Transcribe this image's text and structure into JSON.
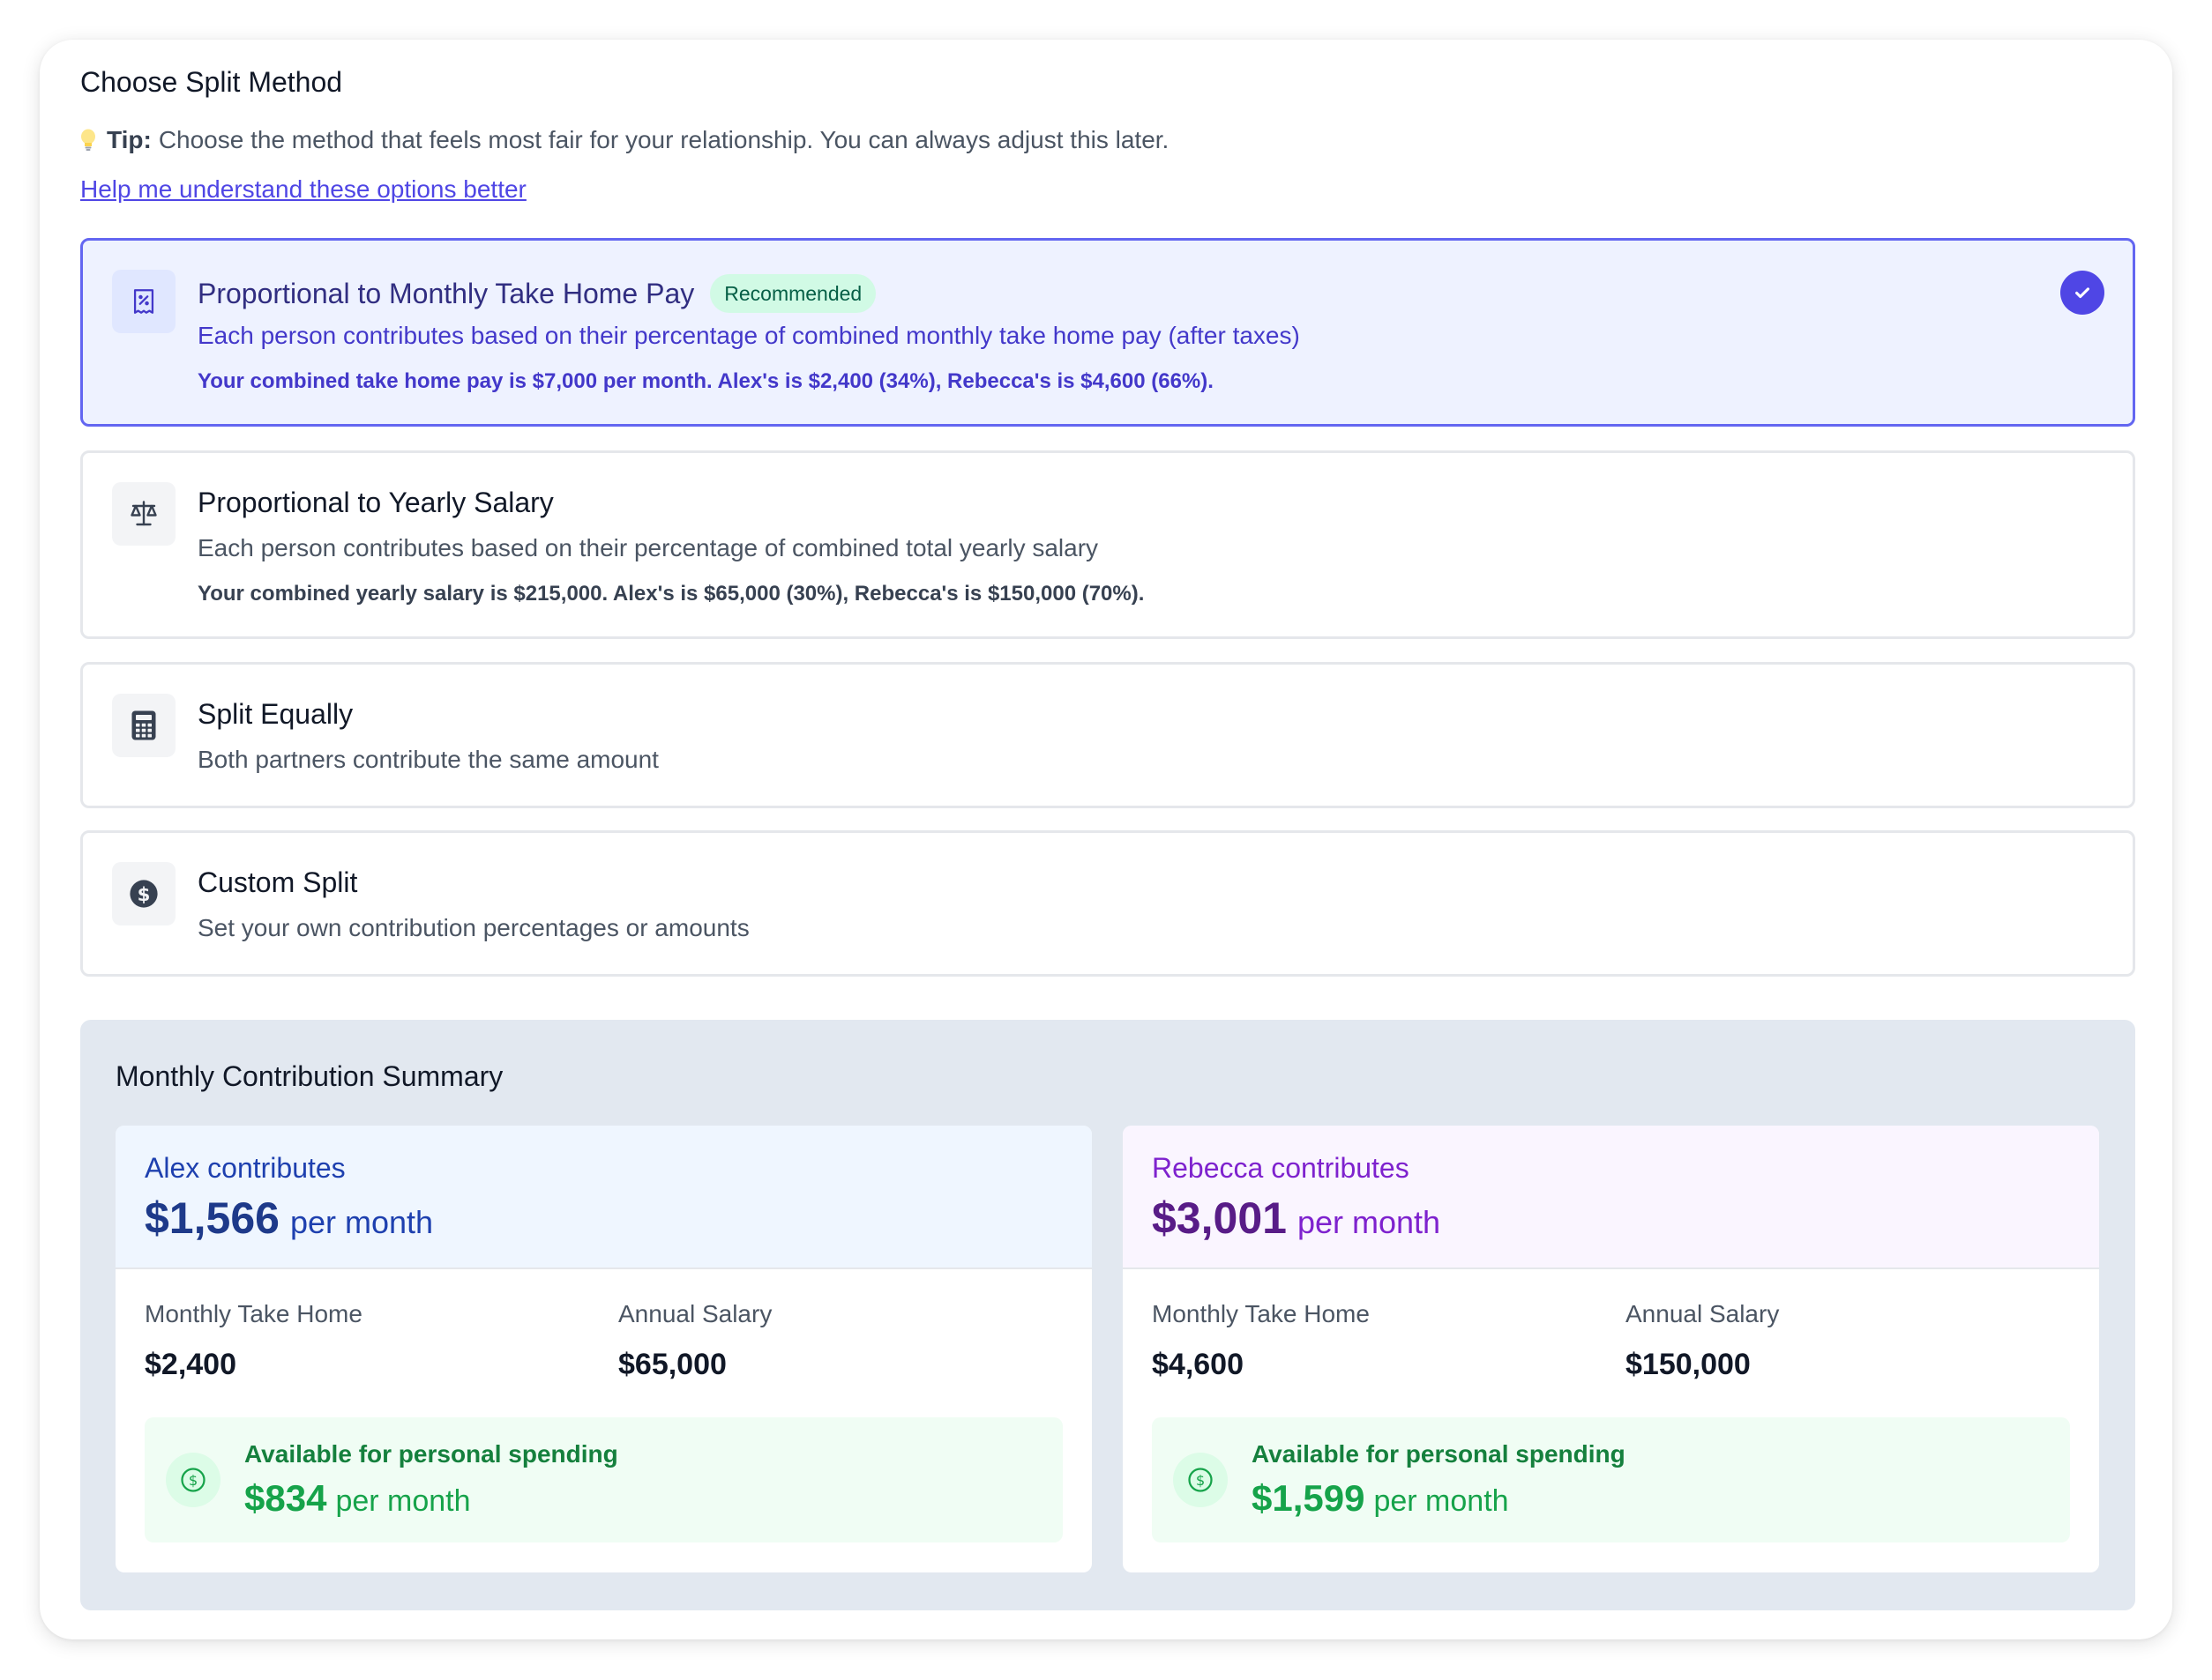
{
  "header": {
    "title": "Choose Split Method",
    "tip_label": "Tip:",
    "tip_text": "Choose the method that feels most fair for your relationship. You can always adjust this later.",
    "help_link": "Help me understand these options better"
  },
  "options": [
    {
      "icon": "receipt-percent-icon",
      "name": "Proportional to Monthly Take Home Pay",
      "badge": "Recommended",
      "description": "Each person contributes based on their percentage of combined monthly take home pay (after taxes)",
      "detail": "Your combined take home pay is $7,000 per month. Alex's is $2,400 (34%), Rebecca's is $4,600 (66%).",
      "selected": true
    },
    {
      "icon": "scale-icon",
      "name": "Proportional to Yearly Salary",
      "description": "Each person contributes based on their percentage of combined total yearly salary",
      "detail": "Your combined yearly salary is $215,000. Alex's is $65,000 (30%), Rebecca's is $150,000 (70%).",
      "selected": false
    },
    {
      "icon": "calculator-icon",
      "name": "Split Equally",
      "description": "Both partners contribute the same amount",
      "selected": false
    },
    {
      "icon": "dollar-circle-icon",
      "name": "Custom Split",
      "description": "Set your own contribution percentages or amounts",
      "selected": false
    }
  ],
  "summary": {
    "title": "Monthly Contribution Summary",
    "alex": {
      "label": "Alex contributes",
      "amount": "$1,566",
      "per": "per month",
      "take_home_label": "Monthly Take Home",
      "take_home": "$2,400",
      "salary_label": "Annual Salary",
      "salary": "$65,000",
      "available_label": "Available for personal spending",
      "available": "$834",
      "available_per": "per month"
    },
    "rebecca": {
      "label": "Rebecca contributes",
      "amount": "$3,001",
      "per": "per month",
      "take_home_label": "Monthly Take Home",
      "take_home": "$4,600",
      "salary_label": "Annual Salary",
      "salary": "$150,000",
      "available_label": "Available for personal spending",
      "available": "$1,599",
      "available_per": "per month"
    }
  },
  "colors": {
    "accent": "#4f46e5",
    "selected_bg": "#eef2ff",
    "recommended_bg": "#d1fae5",
    "alex_bg": "#eff6ff",
    "rebecca_bg": "#faf5ff",
    "available_bg": "#f0fdf4",
    "summary_bg": "#e2e8f0"
  }
}
